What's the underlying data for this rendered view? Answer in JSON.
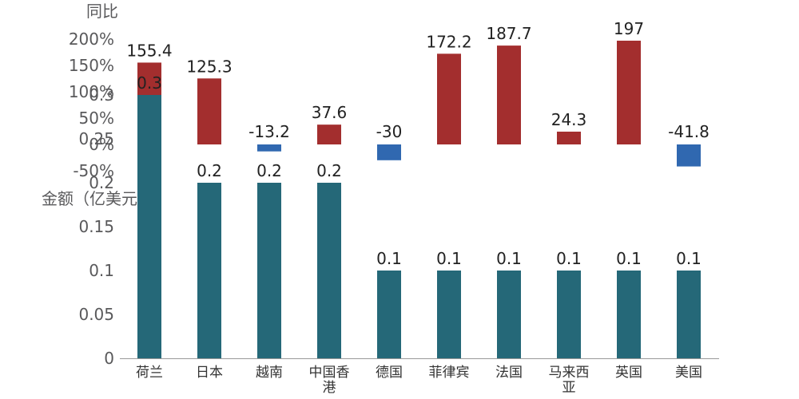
{
  "chart_data": [
    {
      "type": "bar",
      "ylabel": "同比",
      "categories": [
        "荷兰",
        "日本",
        "越南",
        "中国香港",
        "德国",
        "菲律宾",
        "法国",
        "马来西亚",
        "英国",
        "美国"
      ],
      "values": [
        155.4,
        125.3,
        -13.2,
        37.6,
        -30,
        172.2,
        187.7,
        24.3,
        197,
        -41.8
      ],
      "value_labels": [
        "155.4",
        "125.3",
        "-13.2",
        "37.6",
        "-30",
        "172.2",
        "187.7",
        "24.3",
        "197",
        "-41.8"
      ],
      "ylim": [
        -50,
        200
      ],
      "yticks": [
        200,
        150,
        100,
        50,
        0,
        -50
      ],
      "ytick_labels": [
        "200%",
        "150%",
        "100%",
        "50%",
        "0%",
        "-50%"
      ],
      "colors": {
        "positive": "#a32e2e",
        "negative": "#3068b0"
      },
      "grid": false
    },
    {
      "type": "bar",
      "ylabel": "金额（亿美元）",
      "categories": [
        "荷兰",
        "日本",
        "越南",
        "中国香港",
        "德国",
        "菲律宾",
        "法国",
        "马来西亚",
        "英国",
        "美国"
      ],
      "category_labels": [
        [
          "荷兰"
        ],
        [
          "日本"
        ],
        [
          "越南"
        ],
        [
          "中国香",
          "港"
        ],
        [
          "德国"
        ],
        [
          "菲律宾"
        ],
        [
          "法国"
        ],
        [
          "马来西",
          "亚"
        ],
        [
          "英国"
        ],
        [
          "美国"
        ]
      ],
      "values": [
        0.3,
        0.2,
        0.2,
        0.2,
        0.1,
        0.1,
        0.1,
        0.1,
        0.1,
        0.1
      ],
      "value_labels": [
        "0.3",
        "0.2",
        "0.2",
        "0.2",
        "0.1",
        "0.1",
        "0.1",
        "0.1",
        "0.1",
        "0.1"
      ],
      "ylim": [
        0,
        0.3
      ],
      "yticks": [
        0.3,
        0.25,
        0.2,
        0.15,
        0.1,
        0.05,
        0
      ],
      "ytick_labels": [
        "0.3",
        "0.25",
        "0.2",
        "0.15",
        "0.1",
        "0.05",
        "0"
      ],
      "colors": {
        "bar": "#256878"
      },
      "grid": false
    }
  ]
}
